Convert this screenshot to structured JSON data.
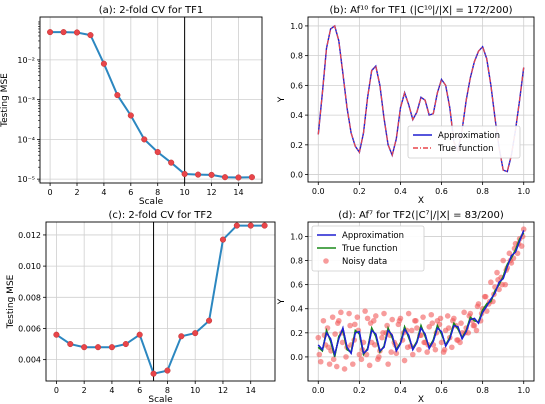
{
  "chart_data": [
    {
      "type": "line",
      "title": "(a): 2-fold CV for TF1",
      "xlabel": "Scale",
      "ylabel": "Testing MSE",
      "yscale": "log",
      "xlim": [
        -0.75,
        15.75
      ],
      "ylim": [
        8e-06,
        0.12
      ],
      "xticks": [
        0,
        2,
        4,
        6,
        8,
        10,
        12,
        14
      ],
      "xtick_labels": [
        "0",
        "2",
        "4",
        "6",
        "8",
        "10",
        "12",
        "14"
      ],
      "yticks": [
        1e-05,
        0.0001,
        0.001,
        0.01
      ],
      "ytick_labels": [
        "10⁻⁵",
        "10⁻⁴",
        "10⁻³",
        "10⁻²"
      ],
      "grid": true,
      "vline": 10,
      "x": [
        0,
        1,
        2,
        3,
        4,
        5,
        6,
        7,
        8,
        9,
        10,
        11,
        12,
        13,
        14,
        15
      ],
      "series": [
        {
          "values": [
            0.05,
            0.05,
            0.049,
            0.042,
            0.008,
            0.0013,
            0.0004,
            0.0001,
            4.8e-05,
            2.6e-05,
            1.35e-05,
            1.3e-05,
            1.28e-05,
            1.12e-05,
            1.1e-05,
            1.12e-05
          ]
        }
      ],
      "colors": {
        "line": "#2c87c0",
        "marker": "#e8454a"
      }
    },
    {
      "type": "line",
      "title": "(b): Af¹⁰ for TF1 (|C¹⁰|/|X| = 172/200)",
      "xlabel": "X",
      "ylabel": "Y",
      "xlim": [
        -0.05,
        1.05
      ],
      "ylim": [
        -0.05,
        1.06
      ],
      "xticks": [
        0.0,
        0.2,
        0.4,
        0.6,
        0.8,
        1.0
      ],
      "xtick_labels": [
        "0.0",
        "0.2",
        "0.4",
        "0.6",
        "0.8",
        "1.0"
      ],
      "yticks": [
        0.0,
        0.2,
        0.4,
        0.6,
        0.8,
        1.0
      ],
      "ytick_labels": [
        "0.0",
        "0.2",
        "0.4",
        "0.6",
        "0.8",
        "1.0"
      ],
      "grid": true,
      "legend": {
        "position": "lower-right",
        "entries": [
          "Approximation",
          "True function"
        ]
      },
      "x": [
        0.0,
        0.02,
        0.04,
        0.06,
        0.08,
        0.1,
        0.12,
        0.14,
        0.16,
        0.18,
        0.2,
        0.22,
        0.24,
        0.26,
        0.28,
        0.3,
        0.32,
        0.34,
        0.36,
        0.38,
        0.4,
        0.42,
        0.44,
        0.46,
        0.48,
        0.5,
        0.52,
        0.54,
        0.56,
        0.58,
        0.6,
        0.62,
        0.64,
        0.66,
        0.68,
        0.7,
        0.72,
        0.74,
        0.76,
        0.78,
        0.8,
        0.82,
        0.84,
        0.86,
        0.88,
        0.9,
        0.92,
        0.94,
        0.96,
        0.98,
        1.0
      ],
      "series": [
        {
          "name": "Approximation",
          "style": "solid",
          "values": [
            0.27,
            0.55,
            0.85,
            0.98,
            1.0,
            0.9,
            0.68,
            0.45,
            0.28,
            0.19,
            0.15,
            0.28,
            0.52,
            0.7,
            0.73,
            0.6,
            0.38,
            0.2,
            0.13,
            0.24,
            0.45,
            0.55,
            0.47,
            0.37,
            0.42,
            0.52,
            0.5,
            0.4,
            0.41,
            0.55,
            0.64,
            0.6,
            0.45,
            0.22,
            0.16,
            0.3,
            0.5,
            0.65,
            0.76,
            0.83,
            0.86,
            0.78,
            0.6,
            0.38,
            0.18,
            0.03,
            0.02,
            0.13,
            0.3,
            0.5,
            0.72
          ]
        },
        {
          "name": "True function",
          "style": "dashdot",
          "values": [
            0.27,
            0.55,
            0.85,
            0.98,
            1.0,
            0.9,
            0.68,
            0.45,
            0.28,
            0.19,
            0.15,
            0.28,
            0.52,
            0.7,
            0.73,
            0.6,
            0.38,
            0.2,
            0.13,
            0.24,
            0.45,
            0.55,
            0.47,
            0.37,
            0.42,
            0.52,
            0.5,
            0.4,
            0.41,
            0.55,
            0.64,
            0.6,
            0.45,
            0.22,
            0.16,
            0.3,
            0.5,
            0.65,
            0.76,
            0.83,
            0.86,
            0.78,
            0.6,
            0.38,
            0.18,
            0.03,
            0.02,
            0.13,
            0.3,
            0.5,
            0.72
          ]
        }
      ],
      "colors": {
        "Approximation": "#1f1fd1",
        "True function": "#e8454a"
      }
    },
    {
      "type": "line",
      "title": "(c): 2-fold CV for TF2",
      "xlabel": "Scale",
      "ylabel": "Testing MSE",
      "xlim": [
        -0.75,
        15.75
      ],
      "ylim": [
        0.00263,
        0.01283
      ],
      "xticks": [
        0,
        2,
        4,
        6,
        8,
        10,
        12,
        14
      ],
      "xtick_labels": [
        "0",
        "2",
        "4",
        "6",
        "8",
        "10",
        "12",
        "14"
      ],
      "yticks": [
        0.004,
        0.006,
        0.008,
        0.01,
        0.012
      ],
      "ytick_labels": [
        "0.004",
        "0.006",
        "0.008",
        "0.010",
        "0.012"
      ],
      "grid": true,
      "vline": 7,
      "x": [
        0,
        1,
        2,
        3,
        4,
        5,
        6,
        7,
        8,
        9,
        10,
        11,
        12,
        13,
        14,
        15
      ],
      "series": [
        {
          "values": [
            0.0056,
            0.005,
            0.0048,
            0.0048,
            0.0048,
            0.005,
            0.0056,
            0.0031,
            0.0033,
            0.0055,
            0.0057,
            0.0065,
            0.0117,
            0.0126,
            0.0126,
            0.0126
          ]
        }
      ],
      "colors": {
        "line": "#2c87c0",
        "marker": "#e8454a"
      }
    },
    {
      "type": "scatter",
      "title": "(d): Af⁷ for TF2(|C⁷|/|X| = 83/200)",
      "xlabel": "X",
      "ylabel": "Y",
      "xlim": [
        -0.05,
        1.05
      ],
      "ylim": [
        -0.2,
        1.12
      ],
      "xticks": [
        0.0,
        0.2,
        0.4,
        0.6,
        0.8,
        1.0
      ],
      "xtick_labels": [
        "0.0",
        "0.2",
        "0.4",
        "0.6",
        "0.8",
        "1.0"
      ],
      "yticks": [
        0.0,
        0.2,
        0.4,
        0.6,
        0.8,
        1.0
      ],
      "ytick_labels": [
        "0.0",
        "0.2",
        "0.4",
        "0.6",
        "0.8",
        "1.0"
      ],
      "grid": true,
      "legend": {
        "position": "top-left",
        "entries": [
          "Approximation",
          "True function",
          "Noisy data"
        ]
      },
      "series": [
        {
          "name": "True function",
          "style": "line",
          "x": [
            0.0,
            0.02,
            0.04,
            0.06,
            0.08,
            0.1,
            0.12,
            0.14,
            0.16,
            0.18,
            0.2,
            0.22,
            0.24,
            0.26,
            0.28,
            0.3,
            0.32,
            0.34,
            0.36,
            0.38,
            0.4,
            0.42,
            0.44,
            0.46,
            0.48,
            0.5,
            0.52,
            0.54,
            0.56,
            0.58,
            0.6,
            0.62,
            0.64,
            0.66,
            0.68,
            0.7,
            0.72,
            0.74,
            0.76,
            0.78,
            0.8,
            0.82,
            0.84,
            0.86,
            0.88,
            0.9,
            0.92,
            0.94,
            0.96,
            0.98,
            1.0
          ],
          "values": [
            0.08,
            0.05,
            0.22,
            0.13,
            0.0,
            0.17,
            0.22,
            0.06,
            0.04,
            0.22,
            0.19,
            0.02,
            0.07,
            0.24,
            0.17,
            0.04,
            0.09,
            0.24,
            0.16,
            0.06,
            0.12,
            0.25,
            0.16,
            0.07,
            0.13,
            0.26,
            0.17,
            0.08,
            0.14,
            0.26,
            0.19,
            0.1,
            0.16,
            0.28,
            0.23,
            0.16,
            0.22,
            0.33,
            0.3,
            0.29,
            0.39,
            0.44,
            0.46,
            0.55,
            0.6,
            0.67,
            0.77,
            0.82,
            0.89,
            0.98,
            1.03
          ]
        },
        {
          "name": "Approximation",
          "style": "line",
          "x": [
            0.0,
            0.02,
            0.04,
            0.06,
            0.08,
            0.1,
            0.12,
            0.14,
            0.16,
            0.18,
            0.2,
            0.22,
            0.24,
            0.26,
            0.28,
            0.3,
            0.32,
            0.34,
            0.36,
            0.38,
            0.4,
            0.42,
            0.44,
            0.46,
            0.48,
            0.5,
            0.52,
            0.54,
            0.56,
            0.58,
            0.6,
            0.62,
            0.64,
            0.66,
            0.68,
            0.7,
            0.72,
            0.74,
            0.76,
            0.78,
            0.8,
            0.82,
            0.84,
            0.86,
            0.88,
            0.9,
            0.92,
            0.94,
            0.96,
            0.98,
            1.0
          ],
          "values": [
            0.1,
            0.06,
            0.2,
            0.15,
            0.02,
            0.15,
            0.24,
            0.08,
            0.03,
            0.2,
            0.21,
            0.03,
            0.06,
            0.22,
            0.19,
            0.05,
            0.08,
            0.22,
            0.18,
            0.05,
            0.11,
            0.23,
            0.18,
            0.06,
            0.12,
            0.24,
            0.19,
            0.07,
            0.13,
            0.24,
            0.21,
            0.09,
            0.15,
            0.26,
            0.25,
            0.15,
            0.21,
            0.31,
            0.32,
            0.28,
            0.37,
            0.42,
            0.48,
            0.53,
            0.62,
            0.65,
            0.75,
            0.84,
            0.87,
            0.96,
            1.05
          ]
        },
        {
          "name": "Noisy data",
          "style": "markers",
          "x": [
            0.0,
            0.012,
            0.025,
            0.035,
            0.045,
            0.055,
            0.062,
            0.07,
            0.082,
            0.09,
            0.1,
            0.11,
            0.118,
            0.128,
            0.14,
            0.15,
            0.16,
            0.168,
            0.178,
            0.19,
            0.2,
            0.21,
            0.22,
            0.228,
            0.24,
            0.25,
            0.26,
            0.27,
            0.28,
            0.29,
            0.3,
            0.31,
            0.32,
            0.33,
            0.34,
            0.35,
            0.36,
            0.37,
            0.38,
            0.39,
            0.4,
            0.41,
            0.42,
            0.43,
            0.44,
            0.45,
            0.46,
            0.47,
            0.48,
            0.49,
            0.5,
            0.51,
            0.52,
            0.53,
            0.54,
            0.55,
            0.56,
            0.57,
            0.58,
            0.59,
            0.6,
            0.61,
            0.62,
            0.63,
            0.64,
            0.65,
            0.66,
            0.67,
            0.68,
            0.69,
            0.7,
            0.71,
            0.72,
            0.73,
            0.74,
            0.75,
            0.76,
            0.77,
            0.78,
            0.79,
            0.8,
            0.81,
            0.82,
            0.83,
            0.84,
            0.85,
            0.86,
            0.87,
            0.88,
            0.89,
            0.9,
            0.91,
            0.92,
            0.93,
            0.94,
            0.95,
            0.96,
            0.97,
            0.98,
            0.99,
            1.0,
            0.005,
            0.03,
            0.05,
            0.075,
            0.095,
            0.115,
            0.135,
            0.155,
            0.175,
            0.195,
            0.215,
            0.235,
            0.255,
            0.275,
            0.295,
            0.315,
            0.335,
            0.355,
            0.375,
            0.395,
            0.415,
            0.435,
            0.455,
            0.475,
            0.495,
            0.515,
            0.535,
            0.555,
            0.575,
            0.595,
            0.615,
            0.635,
            0.655,
            0.675,
            0.695,
            0.715,
            0.735,
            0.755,
            0.775,
            0.795,
            0.815,
            0.835,
            0.855,
            0.875,
            0.895,
            0.915,
            0.935,
            0.955,
            0.975,
            0.995
          ],
          "values": [
            0.16,
            -0.04,
            0.3,
            0.1,
            0.24,
            -0.06,
            0.05,
            0.33,
            0.19,
            -0.08,
            0.3,
            0.37,
            0.12,
            -0.1,
            0.08,
            0.36,
            0.1,
            -0.06,
            0.27,
            0.33,
            0.02,
            -0.02,
            0.12,
            0.38,
            0.32,
            -0.07,
            0.12,
            0.3,
            0.34,
            -0.02,
            0.05,
            0.16,
            0.36,
            0.2,
            -0.06,
            0.18,
            0.31,
            0.12,
            0.03,
            0.27,
            0.32,
            0.14,
            -0.03,
            0.22,
            0.36,
            0.09,
            0.02,
            0.3,
            0.24,
            0.06,
            0.18,
            0.33,
            0.12,
            0.04,
            0.25,
            0.35,
            0.1,
            0.06,
            0.3,
            0.27,
            0.12,
            0.04,
            0.22,
            0.34,
            0.16,
            0.08,
            0.32,
            0.26,
            0.14,
            0.12,
            0.2,
            0.37,
            0.24,
            0.2,
            0.36,
            0.3,
            0.26,
            0.22,
            0.44,
            0.3,
            0.4,
            0.5,
            0.38,
            0.44,
            0.62,
            0.46,
            0.58,
            0.7,
            0.56,
            0.66,
            0.8,
            0.6,
            0.74,
            0.86,
            0.78,
            0.82,
            0.94,
            0.86,
            0.98,
            0.92,
            1.06,
            0.02,
            0.18,
            0.08,
            -0.02,
            0.28,
            0.2,
            0.0,
            0.26,
            0.14,
            0.22,
            0.06,
            0.02,
            0.28,
            0.1,
            0.0,
            0.2,
            0.26,
            0.04,
            0.1,
            0.3,
            0.2,
            0.08,
            0.22,
            0.3,
            0.18,
            0.12,
            0.1,
            0.28,
            0.2,
            0.32,
            0.06,
            0.24,
            0.3,
            0.14,
            0.28,
            0.2,
            0.34,
            0.26,
            0.42,
            0.36,
            0.5,
            0.46,
            0.52,
            0.64,
            0.6,
            0.72,
            0.8,
            0.9,
            0.94,
            1.0
          ]
        }
      ],
      "colors": {
        "Approximation": "#1f1fd1",
        "True function": "#1a8a1a",
        "Noisy data": "#f25a5a"
      }
    }
  ]
}
